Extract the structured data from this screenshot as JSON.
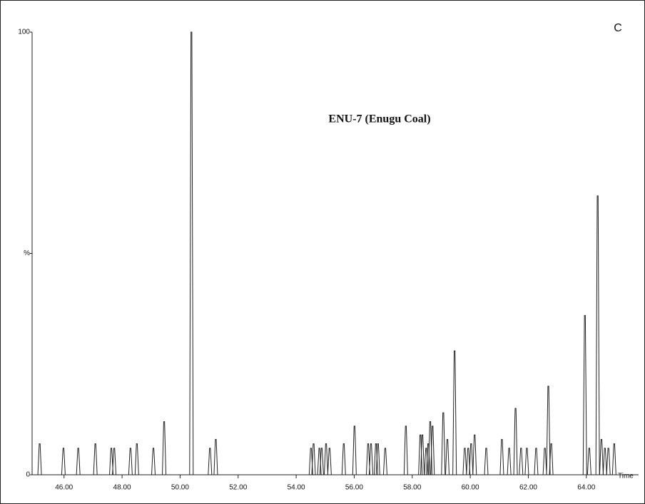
{
  "chart_data": {
    "type": "spike",
    "title": "ENU-7 (Enugu Coal)",
    "panel_label": "C",
    "x_label": "Time",
    "x": [
      45.16,
      45.98,
      46.49,
      47.08,
      47.63,
      47.73,
      48.29,
      48.51,
      49.08,
      49.45,
      50.39,
      51.03,
      51.23,
      54.51,
      54.6,
      54.8,
      54.88,
      55.03,
      55.15,
      55.64,
      56.01,
      56.48,
      56.58,
      56.75,
      56.82,
      57.07,
      57.78,
      58.28,
      58.35,
      58.48,
      58.55,
      58.62,
      58.7,
      59.07,
      59.21,
      59.46,
      59.81,
      59.93,
      60.03,
      60.15,
      60.55,
      61.09,
      61.34,
      61.56,
      61.75,
      61.95,
      62.27,
      62.57,
      62.69,
      62.79,
      63.95,
      64.1,
      64.39,
      64.52,
      64.64,
      64.76,
      64.96
    ],
    "values": [
      7,
      6,
      6,
      7,
      6,
      6,
      6,
      7,
      6,
      12,
      100,
      6,
      8,
      6,
      7,
      6,
      6,
      7,
      6,
      7,
      11,
      7,
      7,
      7,
      7,
      6,
      11,
      9,
      9,
      6,
      7,
      12,
      11,
      14,
      8,
      28,
      6,
      6,
      7,
      9,
      6,
      8,
      6,
      15,
      6,
      6,
      6,
      6,
      20,
      7,
      36,
      6,
      63,
      8,
      6,
      6,
      7
    ],
    "color": "#222222",
    "xlim": [
      44.9,
      65.8
    ],
    "xticks": [
      {
        "value": 46,
        "label": "46.00"
      },
      {
        "value": 48,
        "label": "48.00"
      },
      {
        "value": 50,
        "label": "50.00"
      },
      {
        "value": 52,
        "label": "52.00"
      },
      {
        "value": 54,
        "label": "54.00"
      },
      {
        "value": 56,
        "label": "56.00"
      },
      {
        "value": 58,
        "label": "58.00"
      },
      {
        "value": 60,
        "label": "60.00"
      },
      {
        "value": 62,
        "label": "62.00"
      },
      {
        "value": 64,
        "label": "64.00"
      }
    ],
    "ylim": [
      0,
      100
    ],
    "yticks": [
      0,
      {
        "value": 50,
        "label": "%"
      },
      100
    ]
  }
}
